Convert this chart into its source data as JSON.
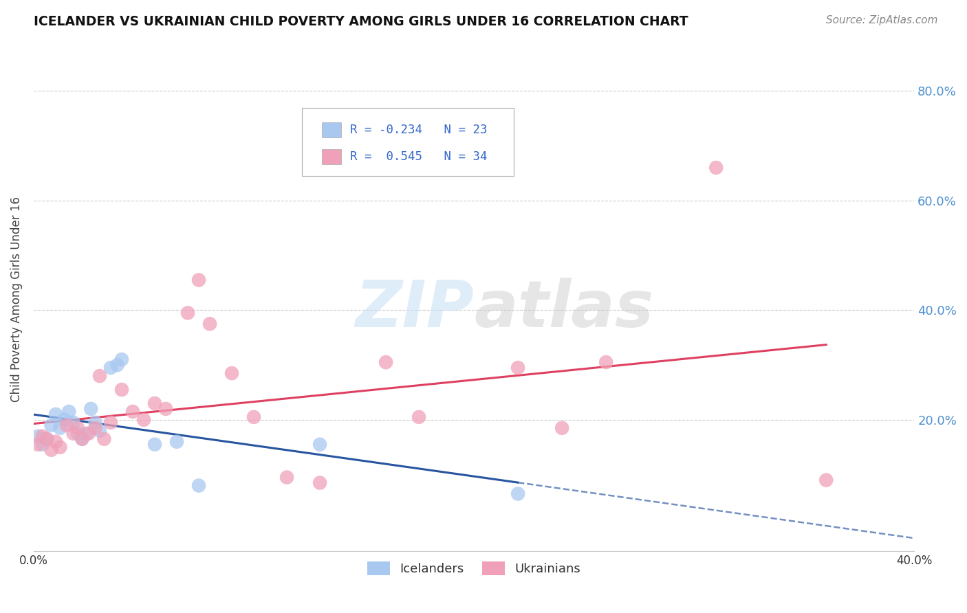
{
  "title": "ICELANDER VS UKRAINIAN CHILD POVERTY AMONG GIRLS UNDER 16 CORRELATION CHART",
  "source": "Source: ZipAtlas.com",
  "ylabel": "Child Poverty Among Girls Under 16",
  "x_range": [
    0.0,
    0.4
  ],
  "y_range": [
    -0.04,
    0.88
  ],
  "legend_R_ice": "-0.234",
  "legend_N_ice": "23",
  "legend_R_ukr": "0.545",
  "legend_N_ukr": "34",
  "ice_color": "#a8c8f0",
  "ukr_color": "#f0a0b8",
  "ice_line_color": "#2855a0",
  "ukr_line_color": "#e04060",
  "background_color": "#ffffff",
  "grid_color": "#cccccc",
  "icelanders_x": [
    0.002,
    0.004,
    0.006,
    0.008,
    0.01,
    0.012,
    0.014,
    0.016,
    0.018,
    0.02,
    0.022,
    0.024,
    0.026,
    0.028,
    0.03,
    0.035,
    0.038,
    0.04,
    0.055,
    0.065,
    0.075,
    0.13,
    0.22
  ],
  "icelanders_y": [
    0.17,
    0.155,
    0.165,
    0.19,
    0.21,
    0.185,
    0.2,
    0.215,
    0.195,
    0.175,
    0.165,
    0.175,
    0.22,
    0.195,
    0.18,
    0.295,
    0.3,
    0.31,
    0.155,
    0.16,
    0.08,
    0.155,
    0.065
  ],
  "ukrainians_x": [
    0.002,
    0.004,
    0.006,
    0.008,
    0.01,
    0.012,
    0.015,
    0.018,
    0.02,
    0.022,
    0.025,
    0.028,
    0.03,
    0.032,
    0.035,
    0.04,
    0.045,
    0.05,
    0.055,
    0.06,
    0.07,
    0.075,
    0.08,
    0.09,
    0.1,
    0.115,
    0.13,
    0.16,
    0.175,
    0.22,
    0.24,
    0.26,
    0.31,
    0.36
  ],
  "ukrainians_y": [
    0.155,
    0.17,
    0.165,
    0.145,
    0.16,
    0.15,
    0.19,
    0.175,
    0.185,
    0.165,
    0.175,
    0.185,
    0.28,
    0.165,
    0.195,
    0.255,
    0.215,
    0.2,
    0.23,
    0.22,
    0.395,
    0.455,
    0.375,
    0.285,
    0.205,
    0.095,
    0.085,
    0.305,
    0.205,
    0.295,
    0.185,
    0.305,
    0.66,
    0.09
  ],
  "y_tick_positions": [
    0.2,
    0.4,
    0.6,
    0.8
  ],
  "y_tick_labels": [
    "20.0%",
    "40.0%",
    "60.0%",
    "80.0%"
  ]
}
